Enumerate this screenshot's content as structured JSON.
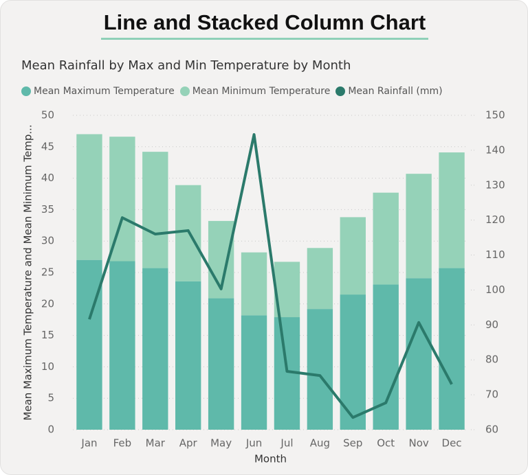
{
  "header": {
    "title": "Line and Stacked Column Chart"
  },
  "chart_data": {
    "type": "combo",
    "title": "Mean Rainfall by Max and Min Temperature by Month",
    "x_label": "Month",
    "y_label": "Mean Maximum Temperature and Mean Minimum Temp...",
    "categories": [
      "Jan",
      "Feb",
      "Mar",
      "Apr",
      "May",
      "Jun",
      "Jul",
      "Aug",
      "Sep",
      "Oct",
      "Nov",
      "Dec"
    ],
    "series": [
      {
        "name": "Mean Maximum Temperature",
        "color": "#5fb9aa",
        "kind": "bar",
        "values": [
          27.0,
          26.8,
          25.7,
          23.6,
          20.9,
          18.2,
          17.9,
          19.2,
          21.5,
          23.1,
          24.1,
          25.7
        ]
      },
      {
        "name": "Mean Minimum Temperature",
        "color": "#95d2b8",
        "kind": "bar",
        "values": [
          20.0,
          19.8,
          18.5,
          15.3,
          12.3,
          10.0,
          8.8,
          9.7,
          12.3,
          14.6,
          16.6,
          18.4
        ]
      },
      {
        "name": "Mean Rainfall (mm)",
        "color": "#2b7a6b",
        "kind": "line",
        "axis": "y2",
        "values": [
          91.6,
          120.7,
          116.0,
          117.0,
          100.3,
          144.5,
          76.7,
          75.5,
          63.5,
          67.7,
          90.7,
          73.0
        ]
      }
    ],
    "ylim": [
      0,
      50
    ],
    "yticks": [
      0,
      5,
      10,
      15,
      20,
      25,
      30,
      35,
      40,
      45,
      50
    ],
    "y2lim": [
      60,
      150
    ],
    "y2ticks": [
      60,
      70,
      80,
      90,
      100,
      110,
      120,
      130,
      140,
      150
    ],
    "grid": true
  }
}
